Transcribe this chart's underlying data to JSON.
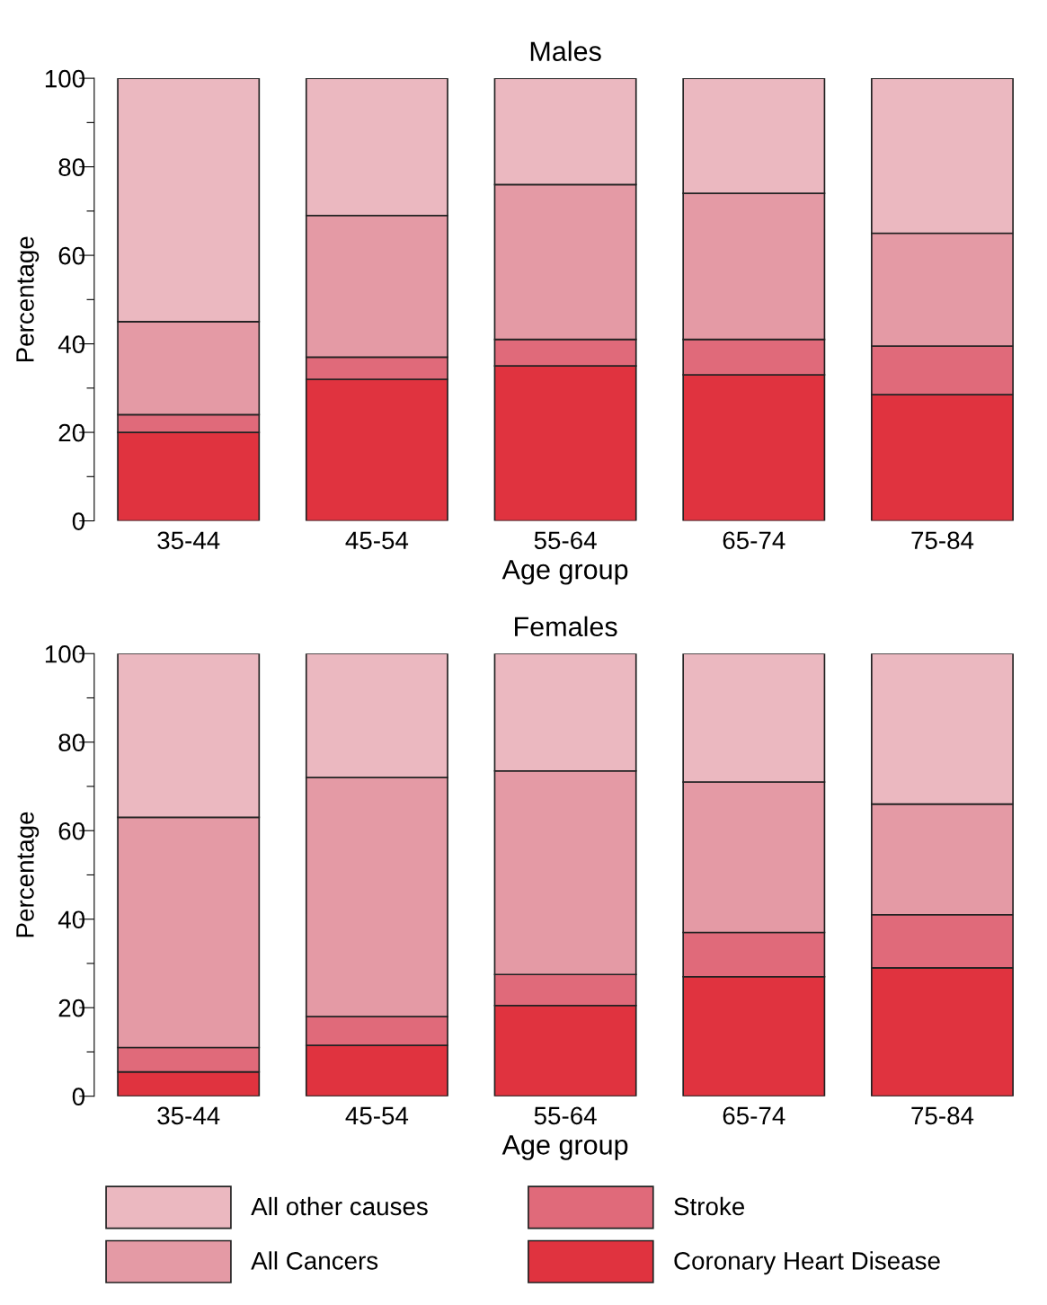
{
  "chart_data": [
    {
      "type": "bar",
      "title": "Males",
      "xlabel": "Age group",
      "ylabel": "Percentage",
      "stacked": true,
      "categories": [
        "35-44",
        "45-54",
        "55-64",
        "65-74",
        "75-84"
      ],
      "series": [
        {
          "name": "Coronary Heart Disease",
          "color": "#e0333f",
          "values": [
            20,
            32,
            35,
            33,
            28.5
          ]
        },
        {
          "name": "Stroke",
          "color": "#e06a7a",
          "values": [
            4,
            5,
            6,
            8,
            11
          ]
        },
        {
          "name": "All Cancers",
          "color": "#e49aa5",
          "values": [
            21,
            32,
            35,
            33,
            25.5
          ]
        },
        {
          "name": "All other causes",
          "color": "#ebb8c0",
          "values": [
            55,
            31,
            24,
            26,
            35
          ]
        }
      ],
      "ylim": [
        0,
        100
      ],
      "yticks": [
        0,
        {
          "value": 10,
          "label": null
        },
        20,
        {
          "value": 30,
          "label": null
        },
        40,
        {
          "value": 50,
          "label": null
        },
        60,
        {
          "value": 70,
          "label": null
        },
        80,
        {
          "value": 90,
          "label": null
        },
        100
      ],
      "grid": false,
      "legend": "bottom"
    },
    {
      "type": "bar",
      "title": "Females",
      "xlabel": "Age group",
      "ylabel": "Percentage",
      "stacked": true,
      "categories": [
        "35-44",
        "45-54",
        "55-64",
        "65-74",
        "75-84"
      ],
      "series": [
        {
          "color": "#e0333f",
          "values": [
            5.5,
            11.5,
            20.5,
            27,
            29
          ]
        },
        {
          "color": "#e06a7a",
          "values": [
            5.5,
            6.5,
            7,
            10,
            12
          ]
        },
        {
          "color": "#e49aa5",
          "values": [
            52,
            54,
            46,
            34,
            25
          ]
        },
        {
          "color": "#ebb8c0",
          "values": [
            37,
            28,
            26.5,
            29,
            34
          ]
        }
      ],
      "ylim": [
        0,
        100
      ],
      "yticks": [
        0,
        {
          "value": 10,
          "label": null
        },
        20,
        {
          "value": 30,
          "label": null
        },
        40,
        {
          "value": 50,
          "label": null
        },
        60,
        {
          "value": 70,
          "label": null
        },
        80,
        {
          "value": 90,
          "label": null
        },
        100
      ],
      "grid": false
    }
  ]
}
